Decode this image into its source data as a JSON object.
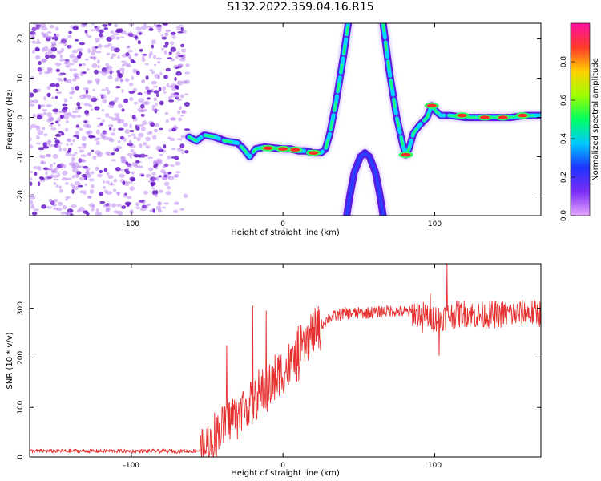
{
  "page": {
    "title": "S132.2022.359.04.16.R15"
  },
  "colors": {
    "snr_line": "#e53030",
    "noise_dot": "#b070f0",
    "noise_dot_dark": "#6a1cc8",
    "ridge_edge": "#5b1ae0",
    "colorbar_stops": [
      "#e6a6ff",
      "#7a2cf5",
      "#1d34ff",
      "#00c8ff",
      "#00ff60",
      "#9cff00",
      "#ffd000",
      "#ff3a2a",
      "#ff0fa0"
    ]
  },
  "chart_data": [
    {
      "type": "heatmap",
      "title": "S132.2022.359.04.16.R15",
      "xlabel": "Height of straight line (km)",
      "ylabel": "Frequency (Hz)",
      "xlim": [
        -167,
        170
      ],
      "ylim": [
        -25,
        24
      ],
      "xticks": [
        -100,
        0,
        100
      ],
      "xtick_labels": [
        "-100",
        "0",
        "100"
      ],
      "yticks": [
        20,
        10,
        0,
        -10,
        -20
      ],
      "ytick_labels": [
        "20",
        "10",
        "0",
        "-10",
        "-20"
      ],
      "colorbar": {
        "label": "Normalized spectral amplitude",
        "range": [
          0,
          1
        ],
        "ticks": [
          0.0,
          0.2,
          0.4,
          0.6,
          0.8
        ],
        "tick_labels": [
          "0.0",
          "0.2",
          "0.4",
          "0.6",
          "0.8"
        ]
      },
      "noise_region": {
        "x": [
          -167,
          -62
        ],
        "y": [
          -25,
          24
        ]
      },
      "ridges": [
        {
          "name": "main",
          "points": [
            [
              -62,
              -5
            ],
            [
              -57,
              -6
            ],
            [
              -52,
              -4.5
            ],
            [
              -45,
              -5
            ],
            [
              -38,
              -6
            ],
            [
              -30,
              -6.5
            ],
            [
              -26,
              -8
            ],
            [
              -22,
              -10
            ],
            [
              -18,
              -8
            ],
            [
              -12,
              -7.5
            ],
            [
              -5,
              -7.8
            ],
            [
              0,
              -8
            ],
            [
              5,
              -8
            ],
            [
              10,
              -8.5
            ],
            [
              15,
              -8.5
            ],
            [
              20,
              -9
            ],
            [
              25,
              -9
            ],
            [
              28,
              -8
            ],
            [
              31,
              -4
            ],
            [
              35,
              4
            ],
            [
              40,
              16
            ],
            [
              43,
              24
            ]
          ]
        },
        {
          "name": "right",
          "points": [
            [
              66,
              24
            ],
            [
              70,
              12
            ],
            [
              75,
              0
            ],
            [
              79,
              -7
            ],
            [
              81,
              -9.5
            ],
            [
              83,
              -8
            ],
            [
              86,
              -4
            ],
            [
              90,
              -2
            ],
            [
              95,
              0
            ],
            [
              98,
              3
            ],
            [
              101,
              1.5
            ],
            [
              104,
              0.5
            ],
            [
              110,
              0.5
            ],
            [
              120,
              0
            ],
            [
              130,
              0
            ],
            [
              140,
              0
            ],
            [
              150,
              0
            ],
            [
              160,
              0.5
            ],
            [
              170,
              0.5
            ]
          ]
        },
        {
          "name": "arch",
          "points": [
            [
              42,
              -25
            ],
            [
              44,
              -20
            ],
            [
              47,
              -14
            ],
            [
              51,
              -10
            ],
            [
              54,
              -9
            ],
            [
              57,
              -10
            ],
            [
              61,
              -14
            ],
            [
              64,
              -20
            ],
            [
              66,
              -25
            ]
          ]
        }
      ],
      "hot_spots": [
        [
          -10,
          -7.8
        ],
        [
          0,
          -8
        ],
        [
          8,
          -8.2
        ],
        [
          20,
          -9
        ],
        [
          118,
          0.5
        ],
        [
          133,
          0
        ],
        [
          145,
          0
        ],
        [
          158,
          0.5
        ],
        [
          81,
          -9.5
        ],
        [
          98,
          3
        ]
      ]
    },
    {
      "type": "line",
      "xlabel": "Height of straight line (km)",
      "ylabel": "SNR (10 * v/v)",
      "xlim": [
        -167,
        170
      ],
      "ylim": [
        0,
        390
      ],
      "xticks": [
        -100,
        0,
        100
      ],
      "xtick_labels": [
        "-100",
        "0",
        "100"
      ],
      "yticks": [
        0,
        100,
        200,
        300
      ],
      "ytick_labels": [
        "0",
        "100",
        "200",
        "300"
      ],
      "trend": [
        [
          -167,
          12
        ],
        [
          -60,
          12
        ],
        [
          -52,
          14
        ],
        [
          -45,
          40
        ],
        [
          -38,
          70
        ],
        [
          -30,
          90
        ],
        [
          -20,
          110
        ],
        [
          -10,
          140
        ],
        [
          0,
          170
        ],
        [
          10,
          205
        ],
        [
          20,
          250
        ],
        [
          30,
          280
        ],
        [
          40,
          290
        ],
        [
          50,
          290
        ],
        [
          60,
          292
        ],
        [
          70,
          295
        ],
        [
          80,
          293
        ],
        [
          90,
          290
        ],
        [
          100,
          280
        ],
        [
          110,
          285
        ],
        [
          120,
          290
        ],
        [
          130,
          285
        ],
        [
          140,
          288
        ],
        [
          150,
          288
        ],
        [
          160,
          290
        ],
        [
          170,
          290
        ]
      ],
      "spikes": [
        [
          -37,
          225
        ],
        [
          -20,
          305
        ],
        [
          -11,
          295
        ],
        [
          108,
          392
        ],
        [
          97,
          330
        ],
        [
          103,
          315
        ],
        [
          92,
          250
        ],
        [
          103,
          205
        ]
      ]
    }
  ]
}
